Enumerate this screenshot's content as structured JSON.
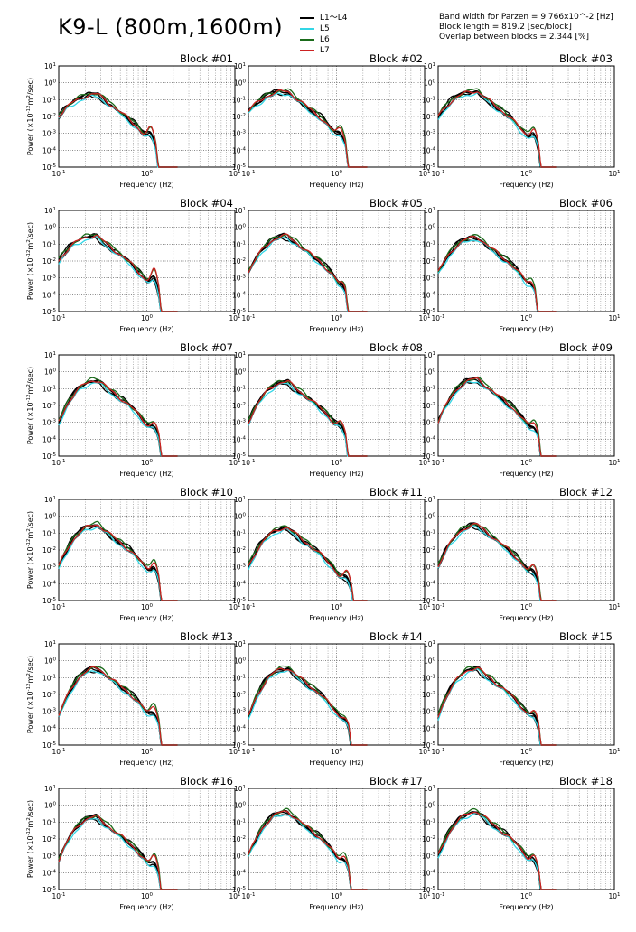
{
  "header": {
    "title": "K9-L (800m,1600m)",
    "params": [
      "Band width for Parzen = 9.766x10^-2 [Hz]",
      "Block length = 819.2 [sec/block]",
      "Overlap between blocks = 2.344 [%]"
    ]
  },
  "legend": [
    {
      "label": "L1～L4",
      "color": "#000000"
    },
    {
      "label": "L5",
      "color": "#33d6e6"
    },
    {
      "label": "L6",
      "color": "#1a6b1a"
    },
    {
      "label": "L7",
      "color": "#cc2222"
    }
  ],
  "chart_data": {
    "type": "line",
    "xscale": "log",
    "yscale": "log",
    "xlim": [
      0.1,
      10
    ],
    "ylim": [
      1e-05,
      10
    ],
    "xlabel": "Frequency (Hz)",
    "ylabel": "Power (×10^-12 m^2/sec)",
    "x_tick_labels": [
      "10^-1",
      "10^0",
      "10^1"
    ],
    "y_tick_labels": [
      "10^-5",
      "10^-4",
      "10^-3",
      "10^-2",
      "10^-1",
      "10^0",
      "10^1"
    ],
    "grid": true,
    "series_names": [
      "L1～L4",
      "L5",
      "L6",
      "L7"
    ],
    "blocks": [
      {
        "title": "Block #01",
        "peak_hz": 0.28,
        "peak_power": 0.2,
        "low_start": 0.01,
        "hump_hz": 1.1,
        "hump_power": 0.002
      },
      {
        "title": "Block #02",
        "peak_hz": 0.28,
        "peak_power": 0.3,
        "low_start": 0.02,
        "hump_hz": 1.1,
        "hump_power": 0.002
      },
      {
        "title": "Block #03",
        "peak_hz": 0.28,
        "peak_power": 0.3,
        "low_start": 0.01,
        "hump_hz": 1.2,
        "hump_power": 0.002
      },
      {
        "title": "Block #04",
        "peak_hz": 0.27,
        "peak_power": 0.3,
        "low_start": 0.01,
        "hump_hz": 1.2,
        "hump_power": 0.003
      },
      {
        "title": "Block #05",
        "peak_hz": 0.28,
        "peak_power": 0.3,
        "low_start": 0.002,
        "hump_hz": 1.1,
        "hump_power": 0.0005
      },
      {
        "title": "Block #06",
        "peak_hz": 0.28,
        "peak_power": 0.25,
        "low_start": 0.002,
        "hump_hz": 1.1,
        "hump_power": 0.0006
      },
      {
        "title": "Block #07",
        "peak_hz": 0.28,
        "peak_power": 0.3,
        "low_start": 0.001,
        "hump_hz": 1.2,
        "hump_power": 0.001
      },
      {
        "title": "Block #08",
        "peak_hz": 0.28,
        "peak_power": 0.25,
        "low_start": 0.001,
        "hump_hz": 1.1,
        "hump_power": 0.001
      },
      {
        "title": "Block #09",
        "peak_hz": 0.28,
        "peak_power": 0.35,
        "low_start": 0.001,
        "hump_hz": 1.2,
        "hump_power": 0.001
      },
      {
        "title": "Block #10",
        "peak_hz": 0.28,
        "peak_power": 0.3,
        "low_start": 0.001,
        "hump_hz": 1.2,
        "hump_power": 0.002
      },
      {
        "title": "Block #11",
        "peak_hz": 0.28,
        "peak_power": 0.2,
        "low_start": 0.001,
        "hump_hz": 1.3,
        "hump_power": 0.0005
      },
      {
        "title": "Block #12",
        "peak_hz": 0.28,
        "peak_power": 0.3,
        "low_start": 0.001,
        "hump_hz": 1.2,
        "hump_power": 0.001
      },
      {
        "title": "Block #13",
        "peak_hz": 0.28,
        "peak_power": 0.35,
        "low_start": 0.0005,
        "hump_hz": 1.2,
        "hump_power": 0.002
      },
      {
        "title": "Block #14",
        "peak_hz": 0.28,
        "peak_power": 0.35,
        "low_start": 0.0005,
        "hump_hz": 1.2,
        "hump_power": 0.0005
      },
      {
        "title": "Block #15",
        "peak_hz": 0.28,
        "peak_power": 0.35,
        "low_start": 0.0005,
        "hump_hz": 1.2,
        "hump_power": 0.001
      },
      {
        "title": "Block #16",
        "peak_hz": 0.27,
        "peak_power": 0.2,
        "low_start": 0.0005,
        "hump_hz": 1.2,
        "hump_power": 0.001
      },
      {
        "title": "Block #17",
        "peak_hz": 0.28,
        "peak_power": 0.4,
        "low_start": 0.001,
        "hump_hz": 1.2,
        "hump_power": 0.001
      },
      {
        "title": "Block #18",
        "peak_hz": 0.28,
        "peak_power": 0.4,
        "low_start": 0.001,
        "hump_hz": 1.2,
        "hump_power": 0.001
      }
    ]
  }
}
